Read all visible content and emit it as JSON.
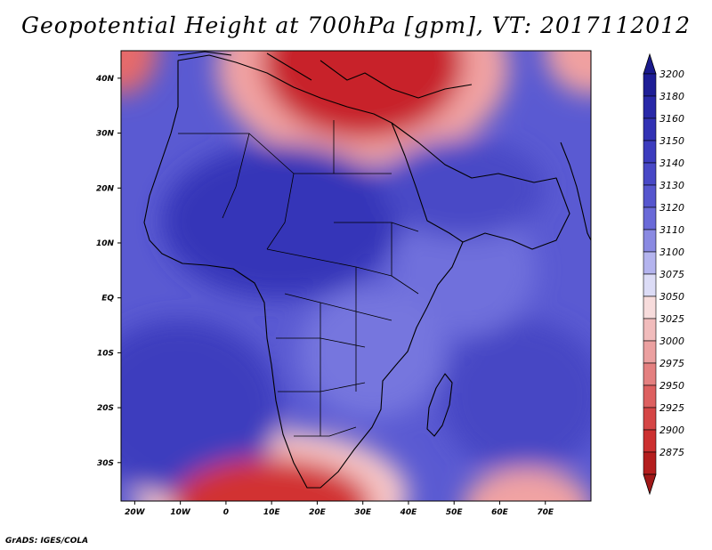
{
  "title": "Geopotential Height at 700hPa [gpm], VT: 2017112012",
  "credit": "GrADS: IGES/COLA",
  "map": {
    "lon_range": [
      -23,
      80
    ],
    "lat_range": [
      -37,
      45
    ],
    "lon_ticks": [
      {
        "value": -20,
        "label": "20W"
      },
      {
        "value": -10,
        "label": "10W"
      },
      {
        "value": 0,
        "label": "0"
      },
      {
        "value": 10,
        "label": "10E"
      },
      {
        "value": 20,
        "label": "20E"
      },
      {
        "value": 30,
        "label": "30E"
      },
      {
        "value": 40,
        "label": "40E"
      },
      {
        "value": 50,
        "label": "50E"
      },
      {
        "value": 60,
        "label": "60E"
      },
      {
        "value": 70,
        "label": "70E"
      }
    ],
    "lat_ticks": [
      {
        "value": 40,
        "label": "40N"
      },
      {
        "value": 30,
        "label": "30N"
      },
      {
        "value": 20,
        "label": "20N"
      },
      {
        "value": 10,
        "label": "10N"
      },
      {
        "value": 0,
        "label": "EQ"
      },
      {
        "value": -10,
        "label": "10S"
      },
      {
        "value": -20,
        "label": "20S"
      },
      {
        "value": -30,
        "label": "30S"
      }
    ],
    "background_color": "#5a5ad2",
    "regions": [
      {
        "name": "mediterranean-low",
        "lon": 30,
        "lat": 43,
        "rx": 22,
        "ry": 14,
        "color": "#c8222a"
      },
      {
        "name": "mediterranean-low-outer",
        "lon": 30,
        "lat": 42,
        "rx": 32,
        "ry": 18,
        "color": "#f1a3a3"
      },
      {
        "name": "northwest-corner-low",
        "lon": -23,
        "lat": 45,
        "rx": 8,
        "ry": 8,
        "color": "#e66a6a"
      },
      {
        "name": "northeast-corner-low",
        "lon": 80,
        "lat": 45,
        "rx": 10,
        "ry": 8,
        "color": "#f0a0a0"
      },
      {
        "name": "southern-ocean-low",
        "lon": 10,
        "lat": -38,
        "rx": 22,
        "ry": 9,
        "color": "#d23030"
      },
      {
        "name": "southern-ocean-low-outer",
        "lon": 10,
        "lat": -36,
        "rx": 30,
        "ry": 12,
        "color": "#f7c7c7"
      },
      {
        "name": "southeast-low",
        "lon": 66,
        "lat": -38,
        "rx": 14,
        "ry": 7,
        "color": "#f1a3a3"
      },
      {
        "name": "sahara-ridge",
        "lon": 12,
        "lat": 14,
        "rx": 26,
        "ry": 14,
        "color": "#3636b8"
      },
      {
        "name": "southern-atlantic-high",
        "lon": -10,
        "lat": -20,
        "rx": 22,
        "ry": 16,
        "color": "#3c3cbe"
      },
      {
        "name": "indian-ocean-high",
        "lon": 65,
        "lat": -18,
        "rx": 18,
        "ry": 14,
        "color": "#4646c4"
      },
      {
        "name": "arabia-ridge",
        "lon": 52,
        "lat": 20,
        "rx": 18,
        "ry": 9,
        "color": "#4848c6"
      },
      {
        "name": "horn-lowish",
        "lon": 52,
        "lat": 5,
        "rx": 16,
        "ry": 12,
        "color": "#7070dc"
      },
      {
        "name": "southern-africa-lowish",
        "lon": 32,
        "lat": -10,
        "rx": 16,
        "ry": 12,
        "color": "#7676de"
      }
    ]
  },
  "colorbar": {
    "levels": [
      "3200",
      "3180",
      "3160",
      "3150",
      "3140",
      "3130",
      "3120",
      "3110",
      "3100",
      "3075",
      "3050",
      "3025",
      "3000",
      "2975",
      "2950",
      "2925",
      "2900",
      "2875"
    ],
    "colors": [
      "#1e1e96",
      "#2828a8",
      "#3232b4",
      "#3c3cbe",
      "#4848c6",
      "#5656ce",
      "#6a6ad8",
      "#8a8ae2",
      "#b4b4ee",
      "#dcdcf6",
      "#f7dcdc",
      "#f1bcbc",
      "#eba0a0",
      "#e48080",
      "#dd6060",
      "#d54646",
      "#cc3030",
      "#b41e1e"
    ],
    "top_arrow_color": "#1a1a8c",
    "bottom_arrow_color": "#a01818"
  }
}
